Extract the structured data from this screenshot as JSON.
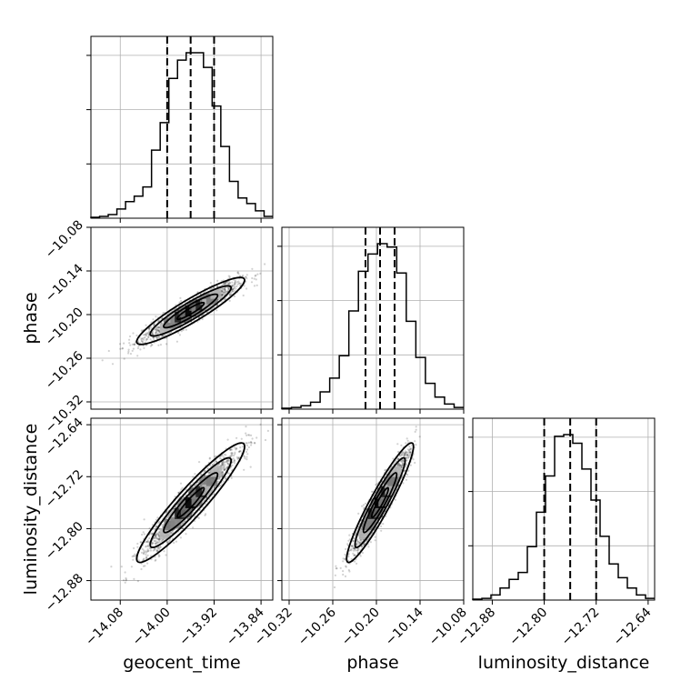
{
  "chart_data": {
    "type": "corner",
    "parameters": [
      "geocent_time",
      "phase",
      "luminosity_distance"
    ],
    "axes_labels": {
      "geocent_time": "geocent_time",
      "phase": "phase",
      "luminosity_distance": "luminosity_distance"
    },
    "ranges": {
      "geocent_time": [
        -14.13,
        -13.82
      ],
      "phase": [
        -10.33,
        -10.08
      ],
      "luminosity_distance": [
        -12.91,
        -12.63
      ]
    },
    "ticks": {
      "geocent_time": [
        "−14.08",
        "−14.00",
        "−13.92",
        "−13.84"
      ],
      "phase": [
        "−10.32",
        "−10.26",
        "−10.20",
        "−10.14",
        "−10.08"
      ],
      "luminosity_distance": [
        "−12.88",
        "−12.80",
        "−12.72",
        "−12.64"
      ]
    },
    "tick_values": {
      "geocent_time": [
        -14.08,
        -14.0,
        -13.92,
        -13.84
      ],
      "phase": [
        -10.32,
        -10.26,
        -10.2,
        -10.14,
        -10.08
      ],
      "luminosity_distance": [
        -12.88,
        -12.8,
        -12.72,
        -12.64
      ]
    },
    "quantiles": {
      "geocent_time": [
        -14.0,
        -13.96,
        -13.92
      ],
      "phase": [
        -10.215,
        -10.195,
        -10.175
      ],
      "luminosity_distance": [
        -12.8,
        -12.76,
        -12.72
      ]
    },
    "histograms": {
      "geocent_time": {
        "edges_start": -14.13,
        "edges_end": -13.82,
        "counts": [
          0.5,
          1,
          2,
          5,
          9,
          12,
          17,
          37,
          52,
          76,
          86,
          90,
          90,
          82,
          61,
          39,
          20,
          11,
          8,
          4,
          1
        ]
      },
      "phase": {
        "edges_start": -10.33,
        "edges_end": -10.08,
        "counts": [
          0.5,
          1,
          2,
          4,
          10,
          18,
          31,
          57,
          80,
          90,
          96,
          94,
          79,
          51,
          30,
          15,
          7,
          3,
          1
        ]
      },
      "luminosity_distance": {
        "edges_start": -12.91,
        "edges_end": -12.63,
        "counts": [
          0.5,
          1,
          3,
          7,
          12,
          16,
          31,
          51,
          72,
          95,
          96,
          91,
          76,
          58,
          37,
          21,
          13,
          7,
          3,
          1
        ]
      }
    },
    "joint": {
      "phase_vs_geocent_time": {
        "x_mean": -13.96,
        "y_mean": -10.195,
        "x_sd": 0.04,
        "y_sd": 0.02,
        "corr": 0.92
      },
      "luminosity_distance_vs_geocent_time": {
        "x_mean": -13.96,
        "y_mean": -12.76,
        "x_sd": 0.04,
        "y_sd": 0.04,
        "corr": 0.94
      },
      "luminosity_distance_vs_phase": {
        "x_mean": -10.195,
        "y_mean": -12.76,
        "x_sd": 0.02,
        "y_sd": 0.04,
        "corr": 0.94
      }
    },
    "grid": true
  }
}
